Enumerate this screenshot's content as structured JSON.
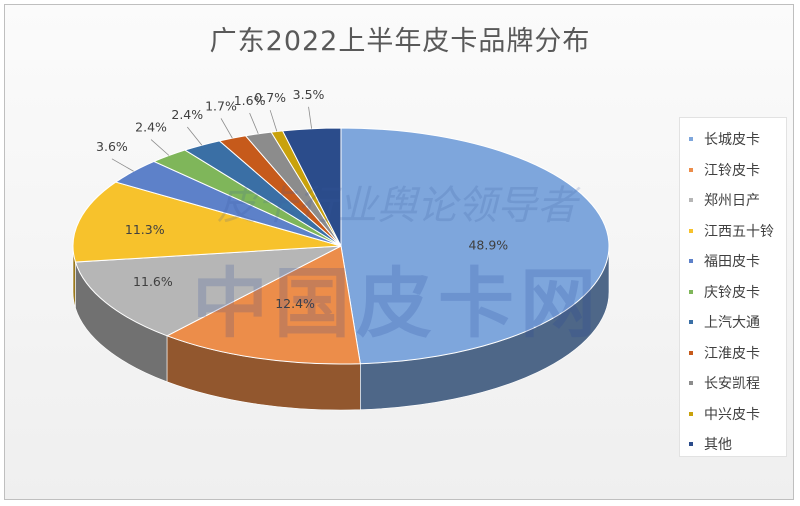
{
  "chart_data": {
    "type": "pie",
    "title": "广东2022上半年皮卡品牌分布",
    "legend_position": "right",
    "categories": [
      "长城皮卡",
      "江铃皮卡",
      "郑州日产",
      "江西五十铃",
      "福田皮卡",
      "庆铃皮卡",
      "上汽大通",
      "江淮皮卡",
      "长安凯程",
      "中兴皮卡",
      "其他"
    ],
    "values": [
      48.9,
      12.4,
      11.6,
      11.3,
      3.6,
      2.4,
      2.4,
      1.7,
      1.6,
      0.7,
      3.5
    ],
    "data_labels": [
      "48.9%",
      "12.4%",
      "11.6%",
      "11.3%",
      "3.6%",
      "2.4%",
      "2.4%",
      "1.7%",
      "1.6%",
      "0.7%",
      "3.5%"
    ],
    "colors": [
      "#7ea6dc",
      "#ec8d4a",
      "#b6b6b6",
      "#f7c22c",
      "#5d81c9",
      "#7fb65a",
      "#3a6fa5",
      "#c65a1b",
      "#8c8c8c",
      "#c9a20c",
      "#2b4c8b"
    ]
  },
  "watermark": {
    "line1": "皮卡行业舆论领导者",
    "line2": "中国皮卡网"
  }
}
